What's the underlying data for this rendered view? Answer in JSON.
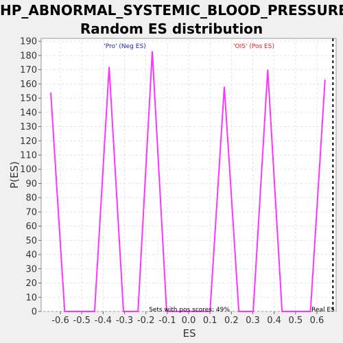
{
  "chart_data": {
    "type": "line",
    "title_line1": "HP_ABNORMAL_SYSTEMIC_BLOOD_PRESSURE:",
    "title_line2": "Random ES distribution",
    "xlabel": "ES",
    "ylabel": "P(ES)",
    "xlim": [
      -0.69,
      0.69
    ],
    "ylim": [
      0,
      192
    ],
    "x_ticks": [
      -0.6,
      -0.5,
      -0.4,
      -0.3,
      -0.2,
      -0.1,
      0.0,
      0.1,
      0.2,
      0.3,
      0.4,
      0.5,
      0.6
    ],
    "x_tick_labels": [
      "-0.6",
      "-0.5",
      "-0.4",
      "-0.3",
      "-0.2",
      "-0.1",
      "0.0",
      "0.1",
      "0.2",
      "0.3",
      "0.4",
      "0.5",
      "0.6"
    ],
    "y_ticks": [
      0,
      10,
      20,
      30,
      40,
      50,
      60,
      70,
      80,
      90,
      100,
      110,
      120,
      130,
      140,
      150,
      160,
      170,
      180,
      190
    ],
    "grid": true,
    "series": [
      {
        "color": "#ff33ff",
        "x": [
          -0.645,
          -0.58,
          -0.44,
          -0.372,
          -0.305,
          -0.237,
          -0.17,
          -0.103,
          0.1,
          0.167,
          0.235,
          0.302,
          0.37,
          0.437,
          0.57,
          0.638
        ],
        "y": [
          154,
          0,
          0,
          172,
          0,
          0,
          183,
          0,
          0,
          158,
          0,
          0,
          170,
          0,
          0,
          163
        ]
      }
    ],
    "real_es": 0.675,
    "annotations": {
      "neg_label": "'Pro' (Neg ES)",
      "pos_label": "'OIS' (Pos ES)",
      "pos_scores_text": "Sets with pos scores: 49%",
      "real_es_label": "Real ES"
    },
    "colors": {
      "neg_label": "#2222bb",
      "pos_label": "#dd2222",
      "real_es_line": "#000000"
    }
  }
}
